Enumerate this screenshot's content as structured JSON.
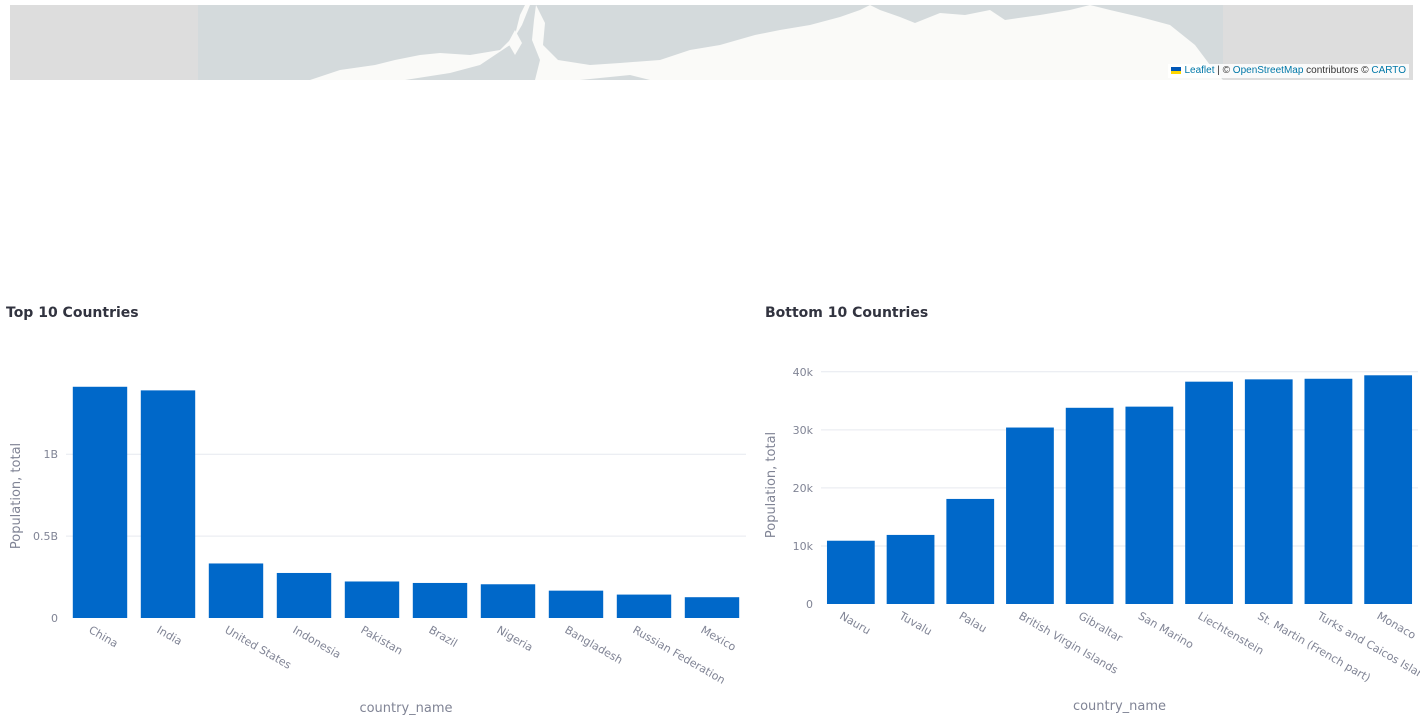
{
  "map": {
    "attribution": {
      "leaflet": "Leaflet",
      "sep1": " | © ",
      "osm": "OpenStreetMap",
      "contributors": " contributors © ",
      "carto": "CARTO"
    }
  },
  "colors": {
    "bar": "#0068c9",
    "grid": "#e6e9ef",
    "axis_text": "#808495",
    "title": "#31333f",
    "map_water": "#d4dadc",
    "map_land": "#fafaf8",
    "map_tile_empty": "#dddddd"
  },
  "chart_data": [
    {
      "type": "bar",
      "title": "Top 10 Countries",
      "xlabel": "country_name",
      "ylabel": "Population, total",
      "categories": [
        "China",
        "India",
        "United States",
        "Indonesia",
        "Pakistan",
        "Brazil",
        "Nigeria",
        "Bangladesh",
        "Russian Federation",
        "Mexico"
      ],
      "values": [
        1412000000,
        1390000000,
        333000000,
        275000000,
        223000000,
        214000000,
        206000000,
        167000000,
        143000000,
        127000000
      ],
      "yticks": [
        0,
        500000000,
        1000000000
      ],
      "ytick_labels": [
        "0",
        "0.5B",
        "1B"
      ],
      "ylim": [
        0,
        1490000000
      ],
      "grid": true
    },
    {
      "type": "bar",
      "title": "Bottom 10 Countries",
      "xlabel": "country_name",
      "ylabel": "Population, total",
      "categories": [
        "Nauru",
        "Tuvalu",
        "Palau",
        "British Virgin Islands",
        "Gibraltar",
        "San Marino",
        "Liechtenstein",
        "St. Martin (French part)",
        "Turks and Caicos Islands",
        "Monaco"
      ],
      "values": [
        10900,
        11900,
        18100,
        30400,
        33800,
        34000,
        38300,
        38700,
        38800,
        39400
      ],
      "yticks": [
        0,
        10000,
        20000,
        30000,
        40000
      ],
      "ytick_labels": [
        "0",
        "10k",
        "20k",
        "30k",
        "40k"
      ],
      "ylim": [
        0,
        41000
      ],
      "grid": true
    }
  ]
}
